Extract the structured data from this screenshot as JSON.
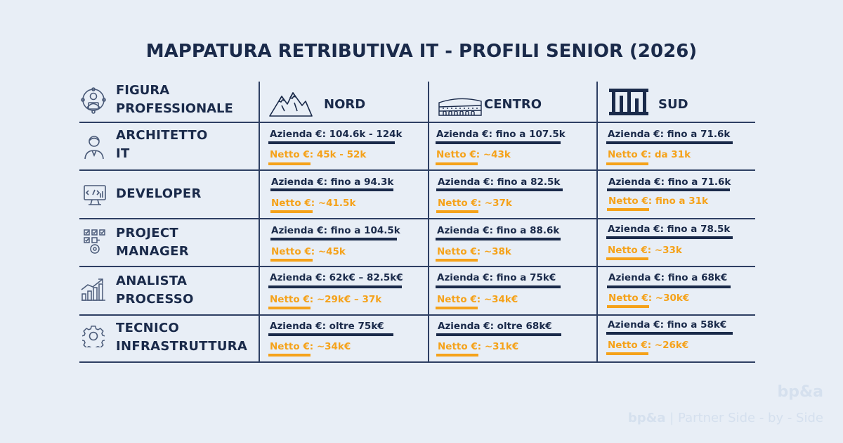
{
  "title": "MAPPATURA RETRIBUTIVA IT - PROFILI SENIOR (2026)",
  "header": {
    "figura_line1": "FIGURA",
    "figura_line2": "PROFESSIONALE",
    "nord": "NORD",
    "centro": "CENTRO",
    "sud": "SUD"
  },
  "rows": [
    {
      "name_line1": "ARCHITETTO",
      "name_line2": "IT",
      "icon": "architect-person-icon",
      "nord": {
        "azienda": "Azienda €: 104.6k - 124k",
        "netto": "Netto €: 45k - 52k"
      },
      "centro": {
        "azienda": "Azienda €: fino a 107.5k",
        "netto": "Netto €: ~43k"
      },
      "sud": {
        "azienda": "Azienda €: fino a 71.6k",
        "netto": "Netto €: da 31k"
      }
    },
    {
      "name_line1": "DEVELOPER",
      "name_line2": "",
      "icon": "developer-monitor-icon",
      "nord": {
        "azienda": "Azienda €: fino a 94.3k",
        "netto": "Netto €: ~41.5k"
      },
      "centro": {
        "azienda": "Azienda €: fino a 82.5k",
        "netto": "Netto €: ~37k"
      },
      "sud": {
        "azienda": "Azienda €: fino a 71.6k",
        "netto": "Netto €: fino a 31k"
      }
    },
    {
      "name_line1": "PROJECT",
      "name_line2": "MANAGER",
      "icon": "project-checklist-icon",
      "nord": {
        "azienda": "Azienda €: fino a 104.5k",
        "netto": "Netto €: ~45k"
      },
      "centro": {
        "azienda": "Azienda €: fino a 88.6k",
        "netto": "Netto €: ~38k"
      },
      "sud": {
        "azienda": "Azienda €: fino a 78.5k",
        "netto": "Netto €: ~33k"
      }
    },
    {
      "name_line1": "ANALISTA",
      "name_line2": "PROCESSO",
      "icon": "growth-chart-icon",
      "nord": {
        "azienda": "Azienda €: 62k€ – 82.5k€",
        "netto": "Netto €: ~29k€ – 37k"
      },
      "centro": {
        "azienda": "Azienda €: fino a 75k€",
        "netto": "Netto €: ~34k€"
      },
      "sud": {
        "azienda": "Azienda €:  fino a 68k€",
        "netto": "Netto €: ~30k€"
      }
    },
    {
      "name_line1": "TECNICO",
      "name_line2": "INFRASTRUTTURA",
      "icon": "gear-icon",
      "nord": {
        "azienda": "Azienda €: oltre 75k€",
        "netto": "Netto €: ~34k€"
      },
      "centro": {
        "azienda": "Azienda €:  oltre 68k€",
        "netto": "Netto €: ~31k€"
      },
      "sud": {
        "azienda": "Azienda €:  fino a 58k€",
        "netto": "Netto €: ~26k€"
      }
    }
  ],
  "brand": {
    "logo": "bp&a",
    "footer_bold": "bp&a",
    "footer_rest": " | Partner Side - by - Side"
  },
  "colors": {
    "background": "#e8eef6",
    "navy": "#1a2a4a",
    "orange": "#f5a21a",
    "watermark": "#d5e0ee"
  }
}
